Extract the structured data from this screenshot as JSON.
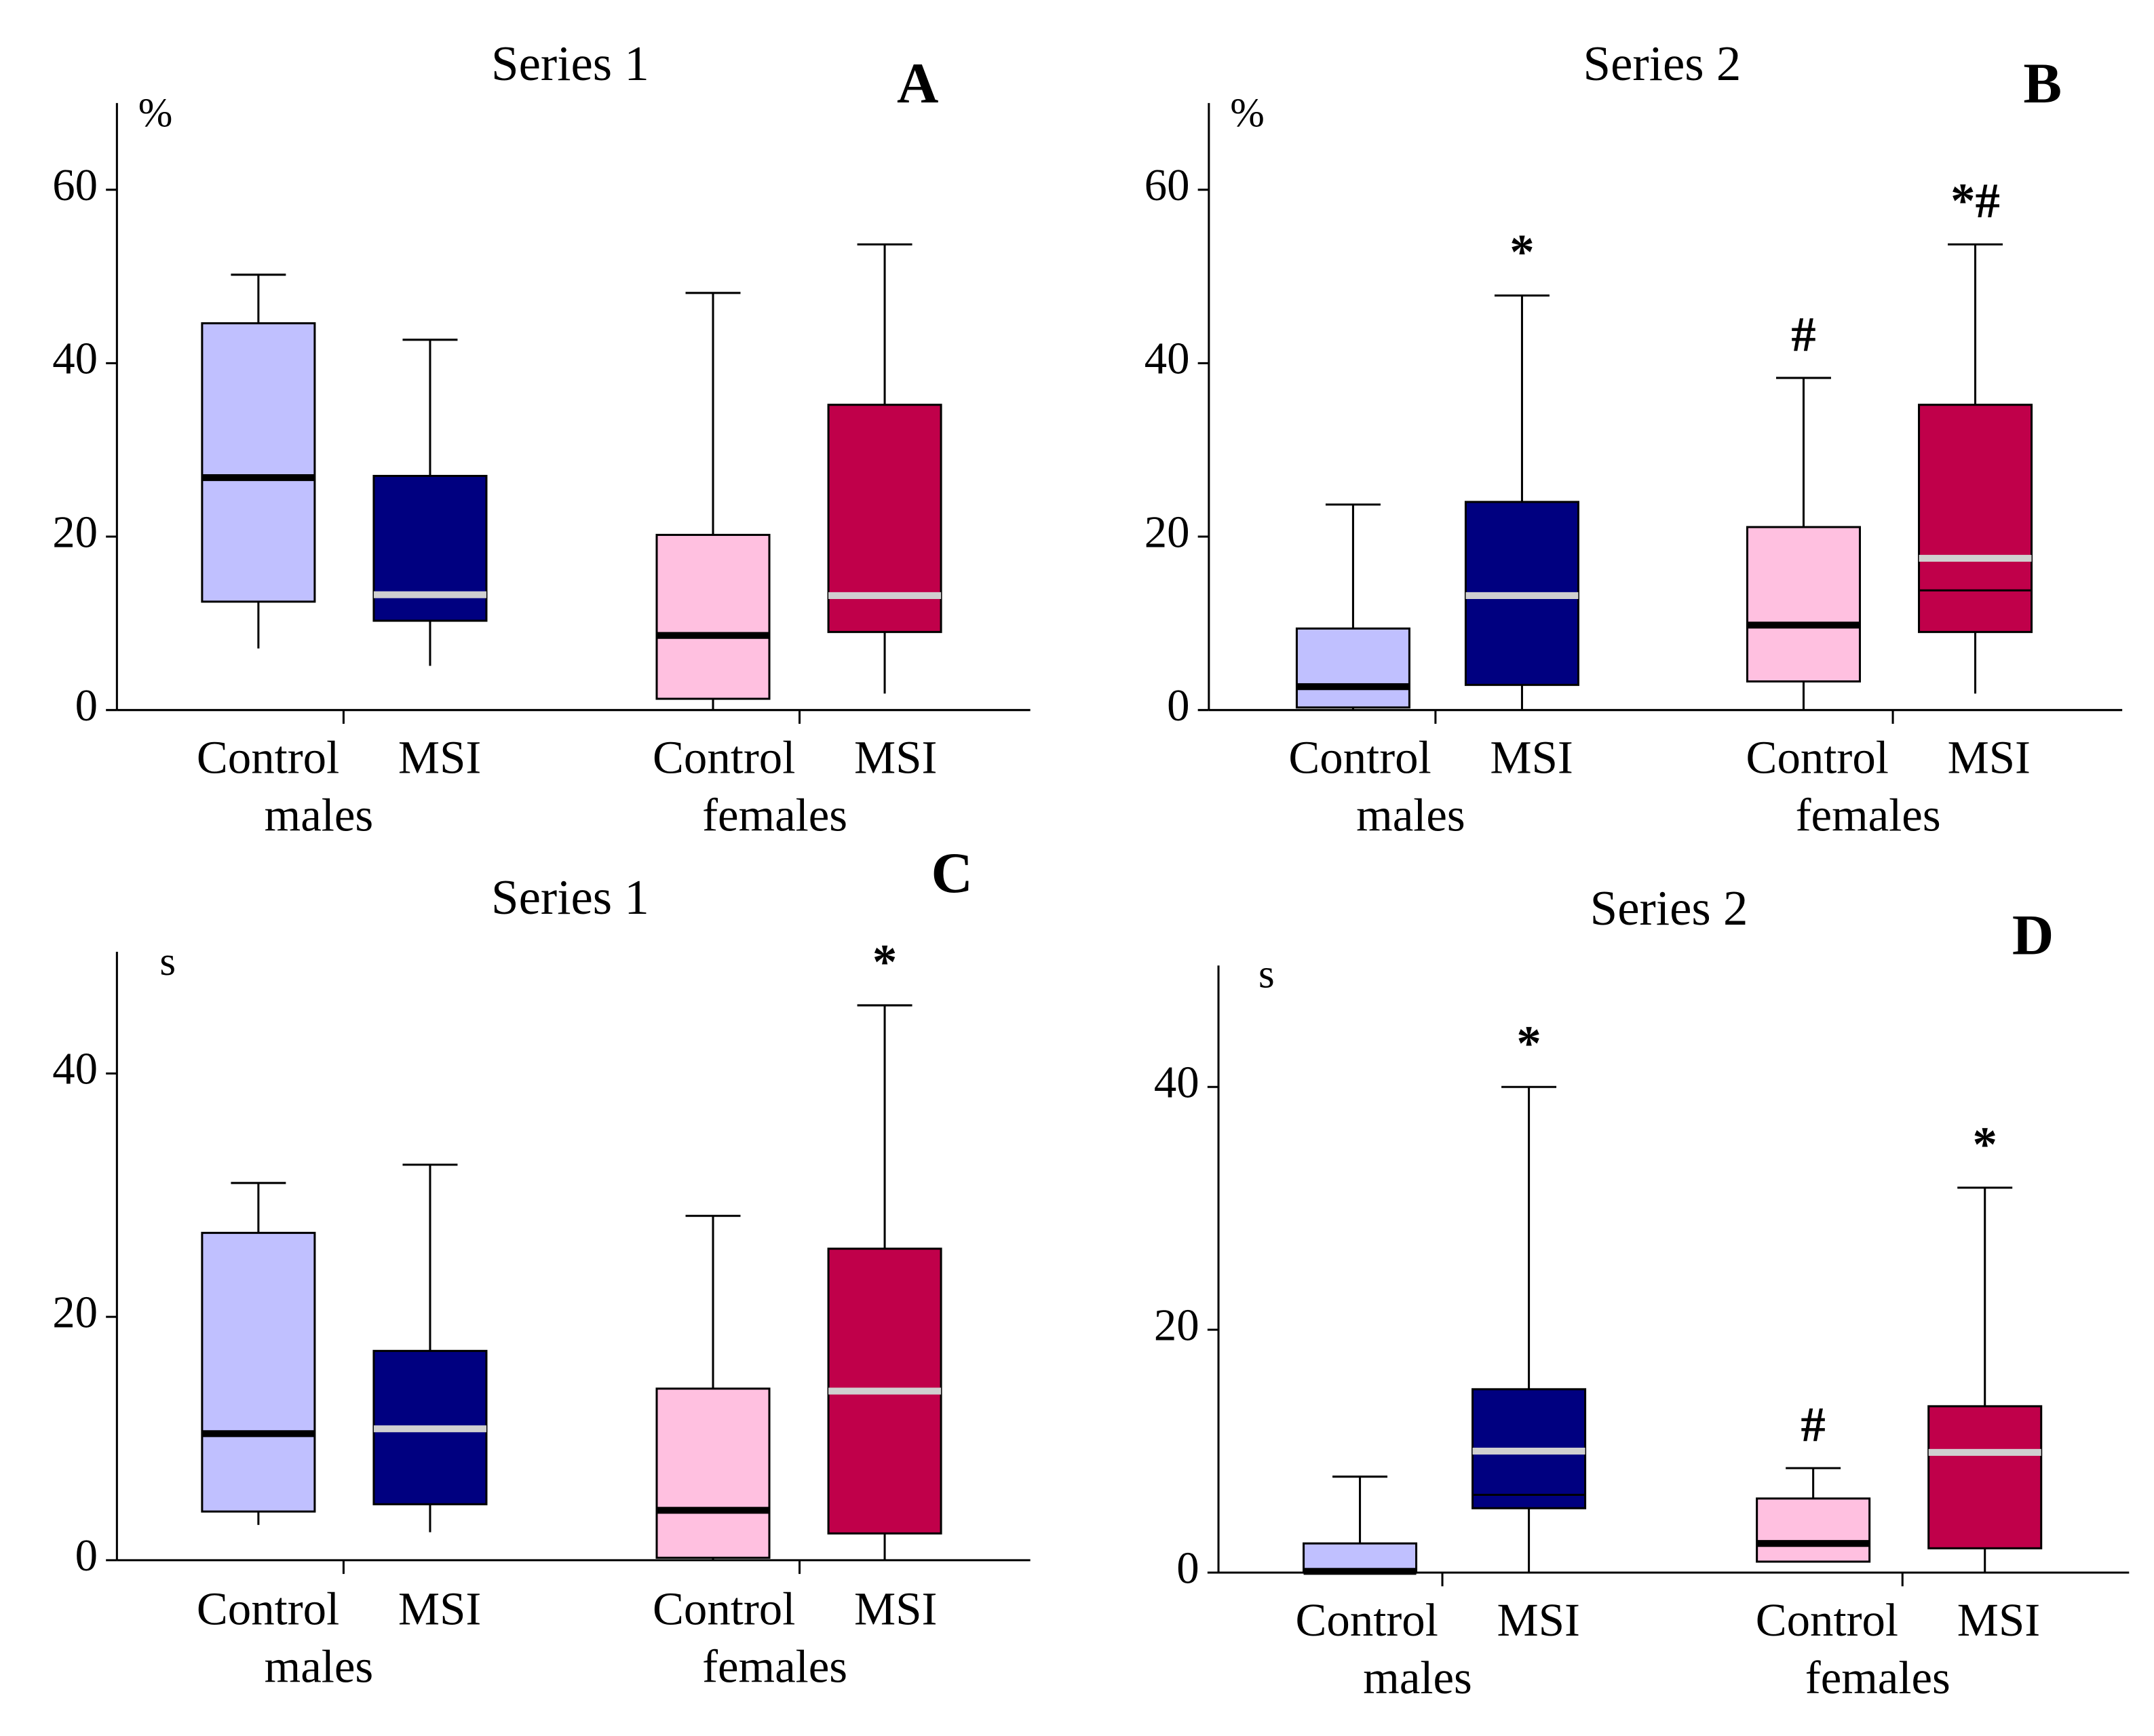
{
  "chart_data": [
    {
      "type": "box",
      "title": "Series 1",
      "panel": "A",
      "unit": "%",
      "ylim": [
        0,
        70
      ],
      "yticks": [
        0,
        20,
        40,
        60
      ],
      "categories": [
        "Control",
        "MSI",
        "Control",
        "MSI"
      ],
      "groups": [
        "males",
        "females"
      ],
      "boxes": [
        {
          "min": 7.1,
          "q1": 12.5,
          "median": 26.8,
          "q3": 44.6,
          "max": 50.2,
          "color": "#c0c0ff",
          "median_color": "#000000"
        },
        {
          "min": 5.1,
          "q1": 10.3,
          "median": 13.3,
          "q3": 27.0,
          "max": 42.7,
          "color": "#000080",
          "median_color": "#d0d0d0"
        },
        {
          "min": 0,
          "q1": 1.3,
          "median": 8.6,
          "q3": 20.2,
          "max": 48.1,
          "color": "#ffc0e0",
          "median_color": "#000000"
        },
        {
          "min": 1.9,
          "q1": 9.0,
          "median": 13.2,
          "q3": 35.2,
          "max": 53.7,
          "color": "#c0004a",
          "median_color": "#d0d0d0"
        }
      ]
    },
    {
      "type": "box",
      "title": "Series 2",
      "panel": "B",
      "unit": "%",
      "ylim": [
        0,
        70
      ],
      "yticks": [
        0,
        20,
        40,
        60
      ],
      "categories": [
        "Control",
        "MSI",
        "Control",
        "MSI"
      ],
      "groups": [
        "males",
        "females"
      ],
      "boxes": [
        {
          "min": 0,
          "q1": 0.3,
          "median": 2.7,
          "q3": 9.4,
          "max": 23.7,
          "color": "#c0c0ff",
          "median_color": "#000000"
        },
        {
          "min": 0,
          "q1": 2.9,
          "median": 13.2,
          "q3": 24.0,
          "max": 47.8,
          "color": "#000080",
          "median_color": "#d0d0d0",
          "annotation": "*"
        },
        {
          "min": 0,
          "q1": 3.3,
          "median": 9.8,
          "q3": 21.1,
          "max": 38.3,
          "color": "#ffc0e0",
          "median_color": "#000000",
          "annotation": "#"
        },
        {
          "min": 1.9,
          "q1": 9.0,
          "median": 17.5,
          "mean": 13.8,
          "q3": 35.2,
          "max": 53.7,
          "color": "#c0004a",
          "median_color": "#d0d0d0",
          "annotation": "*#"
        }
      ]
    },
    {
      "type": "box",
      "title": "Series 1",
      "panel": "C",
      "unit": "s",
      "ylim": [
        0,
        50
      ],
      "yticks": [
        0,
        20,
        40
      ],
      "categories": [
        "Control",
        "MSI",
        "Control",
        "MSI"
      ],
      "groups": [
        "males",
        "females"
      ],
      "boxes": [
        {
          "min": 2.9,
          "q1": 4.0,
          "median": 10.4,
          "q3": 26.9,
          "max": 31.0,
          "color": "#c0c0ff",
          "median_color": "#000000"
        },
        {
          "min": 2.3,
          "q1": 4.6,
          "median": 10.8,
          "q3": 17.2,
          "max": 32.5,
          "color": "#000080",
          "median_color": "#d0d0d0"
        },
        {
          "min": 0,
          "q1": 0.2,
          "median": 4.1,
          "q3": 14.1,
          "max": 28.3,
          "color": "#ffc0e0",
          "median_color": "#000000"
        },
        {
          "min": 0,
          "q1": 2.2,
          "median": 13.9,
          "q3": 25.6,
          "max": 45.6,
          "color": "#c0004a",
          "median_color": "#d0d0d0",
          "annotation": "*"
        }
      ]
    },
    {
      "type": "box",
      "title": "Series 2",
      "panel": "D",
      "unit": "s",
      "ylim": [
        0,
        50
      ],
      "yticks": [
        0,
        20,
        40
      ],
      "categories": [
        "Control",
        "MSI",
        "Control",
        "MSI"
      ],
      "groups": [
        "males",
        "females"
      ],
      "boxes": [
        {
          "min": 0,
          "q1": 0,
          "median": 0.1,
          "q3": 2.4,
          "max": 7.9,
          "color": "#c0c0ff",
          "median_color": "#000000"
        },
        {
          "min": 0,
          "q1": 5.3,
          "median": 10.0,
          "mean": 6.4,
          "q3": 15.1,
          "max": 40,
          "color": "#000080",
          "median_color": "#d0d0d0",
          "annotation": "*"
        },
        {
          "min": 0.9,
          "q1": 0.9,
          "median": 2.4,
          "q3": 6.1,
          "max": 8.6,
          "color": "#ffc0e0",
          "median_color": "#000000",
          "annotation": "#"
        },
        {
          "min": 0,
          "q1": 2.0,
          "median": 9.9,
          "q3": 13.7,
          "max": 31.7,
          "color": "#c0004a",
          "median_color": "#d0d0d0",
          "annotation": "*"
        }
      ]
    }
  ]
}
